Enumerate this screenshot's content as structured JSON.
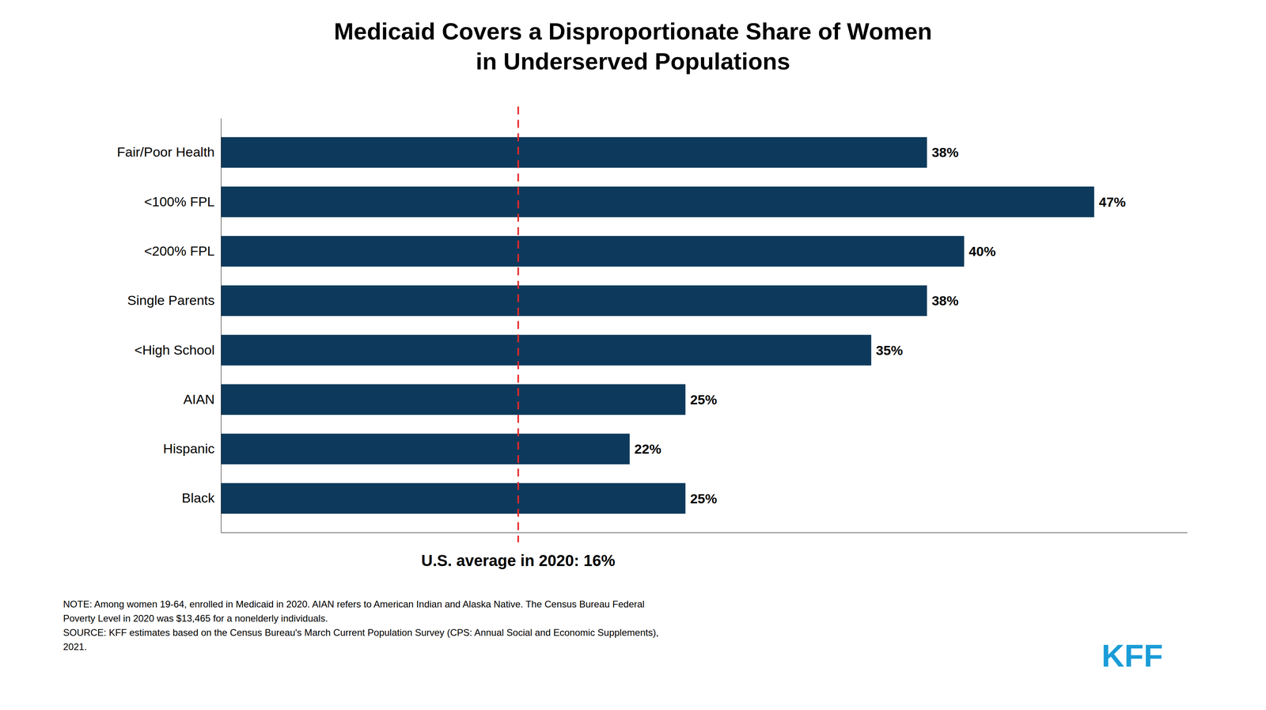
{
  "chart_data": {
    "type": "bar",
    "orientation": "horizontal",
    "title": "Medicaid Covers a Disproportionate Share of Women\nin Underserved Populations",
    "categories": [
      "Fair/Poor Health",
      "<100% FPL",
      "<200% FPL",
      "Single Parents",
      "<High School",
      "AIAN",
      "Hispanic",
      "Black"
    ],
    "values": [
      38,
      47,
      40,
      38,
      35,
      25,
      22,
      25
    ],
    "value_labels": [
      "38%",
      "47%",
      "40%",
      "38%",
      "35%",
      "25%",
      "22%",
      "25%"
    ],
    "data_labels": true,
    "color": "#0d3a5c",
    "xlim": [
      0,
      52
    ],
    "grid": false,
    "tick_labels": "y",
    "annotations": [
      {
        "type": "vline",
        "x": 16,
        "text": "U.S. average in 2020: 16%",
        "color": "#e8282a",
        "line_style": "dashed"
      },
      {
        "type": "note",
        "text": "NOTE: Among women 19-64, enrolled in Medicaid in 2020. AIAN refers to American Indian and Alaska Native. The Census Bureau Federal"
      },
      {
        "type": "note",
        "text": "Poverty Level in 2020 was $13,465 for a nonelderly individuals."
      },
      {
        "type": "note",
        "text": "SOURCE: KFF estimates based on the Census Bureau's March Current Population Survey (CPS: Annual Social and Economic Supplements),"
      },
      {
        "type": "note",
        "text": "2021."
      },
      {
        "type": "logo",
        "text": "KFF",
        "color": "#1a9cd8"
      }
    ]
  }
}
